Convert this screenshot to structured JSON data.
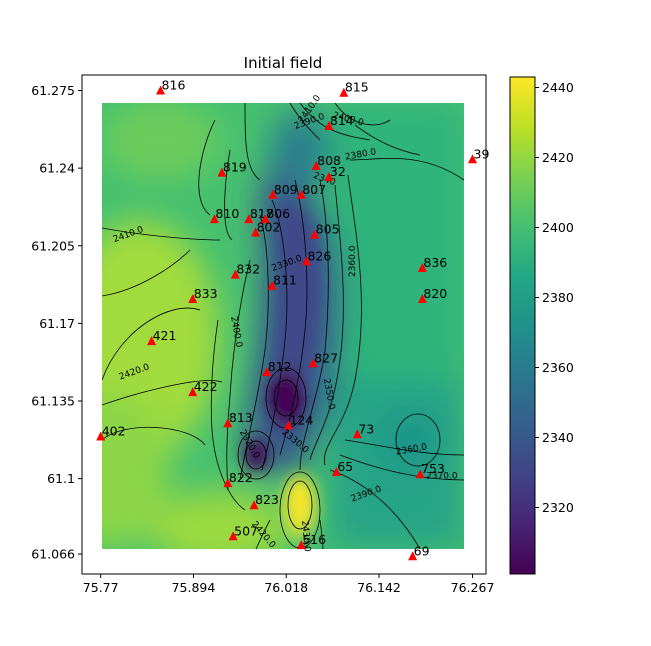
{
  "chart_data": {
    "type": "heatmap",
    "title": "Initial field",
    "xlabel": "",
    "ylabel": "",
    "xlim": [
      75.745,
      76.285
    ],
    "ylim": [
      61.057,
      61.282
    ],
    "field_extent": {
      "x": [
        75.77,
        76.267
      ],
      "y": [
        61.066,
        61.275
      ]
    },
    "x_ticks": [
      "75.77",
      "75.894",
      "76.018",
      "76.142",
      "76.267"
    ],
    "y_ticks": [
      "61.066",
      "61.1",
      "61.135",
      "61.17",
      "61.205",
      "61.24",
      "61.275"
    ],
    "colorbar": {
      "colormap": "viridis",
      "range": [
        2301,
        2443
      ],
      "ticks": [
        "2320",
        "2340",
        "2360",
        "2380",
        "2400",
        "2420",
        "2440"
      ]
    },
    "wells": [
      {
        "label": "816",
        "x": 75.85,
        "y": 61.275
      },
      {
        "label": "815",
        "x": 76.095,
        "y": 61.274
      },
      {
        "label": "814",
        "x": 76.075,
        "y": 61.259
      },
      {
        "label": "39",
        "x": 76.267,
        "y": 61.244
      },
      {
        "label": "819",
        "x": 75.932,
        "y": 61.238
      },
      {
        "label": "808",
        "x": 76.058,
        "y": 61.241
      },
      {
        "label": "32",
        "x": 76.075,
        "y": 61.236
      },
      {
        "label": "809",
        "x": 76.0,
        "y": 61.228
      },
      {
        "label": "807",
        "x": 76.038,
        "y": 61.228
      },
      {
        "label": "810",
        "x": 75.922,
        "y": 61.217
      },
      {
        "label": "817",
        "x": 75.968,
        "y": 61.217
      },
      {
        "label": "806",
        "x": 75.99,
        "y": 61.217
      },
      {
        "label": "802",
        "x": 75.977,
        "y": 61.211
      },
      {
        "label": "805",
        "x": 76.056,
        "y": 61.21
      },
      {
        "label": "826",
        "x": 76.045,
        "y": 61.198
      },
      {
        "label": "836",
        "x": 76.2,
        "y": 61.195
      },
      {
        "label": "832",
        "x": 75.95,
        "y": 61.192
      },
      {
        "label": "811",
        "x": 75.999,
        "y": 61.187
      },
      {
        "label": "820",
        "x": 76.2,
        "y": 61.181
      },
      {
        "label": "833",
        "x": 75.893,
        "y": 61.181
      },
      {
        "label": "421",
        "x": 75.838,
        "y": 61.162
      },
      {
        "label": "827",
        "x": 76.054,
        "y": 61.152
      },
      {
        "label": "812",
        "x": 75.992,
        "y": 61.148
      },
      {
        "label": "422",
        "x": 75.893,
        "y": 61.139
      },
      {
        "label": "813",
        "x": 75.94,
        "y": 61.125
      },
      {
        "label": "124",
        "x": 76.021,
        "y": 61.124
      },
      {
        "label": "73",
        "x": 76.113,
        "y": 61.12
      },
      {
        "label": "402",
        "x": 75.77,
        "y": 61.119
      },
      {
        "label": "65",
        "x": 76.085,
        "y": 61.103
      },
      {
        "label": "753",
        "x": 76.197,
        "y": 61.102
      },
      {
        "label": "822",
        "x": 75.94,
        "y": 61.098
      },
      {
        "label": "823",
        "x": 75.975,
        "y": 61.088
      },
      {
        "label": "507",
        "x": 75.947,
        "y": 61.074
      },
      {
        "label": "516",
        "x": 76.038,
        "y": 61.07
      },
      {
        "label": "69",
        "x": 76.187,
        "y": 61.065
      }
    ],
    "contour_labels": [
      {
        "text": "2410.0",
        "x": 76.052,
        "y": 61.266,
        "rot": 55
      },
      {
        "text": "2390.0",
        "x": 76.05,
        "y": 61.26,
        "rot": 20
      },
      {
        "text": "2400.0",
        "x": 76.1,
        "y": 61.261,
        "rot": -15
      },
      {
        "text": "2380.0",
        "x": 76.118,
        "y": 61.245,
        "rot": 10
      },
      {
        "text": "2340",
        "x": 76.068,
        "y": 61.234,
        "rot": -20
      },
      {
        "text": "2410.0",
        "x": 75.808,
        "y": 61.209,
        "rot": 20
      },
      {
        "text": "2330.0",
        "x": 76.02,
        "y": 61.196,
        "rot": 20
      },
      {
        "text": "2360.0",
        "x": 76.11,
        "y": 61.198,
        "rot": 90
      },
      {
        "text": "2400.0",
        "x": 75.948,
        "y": 61.166,
        "rot": -80
      },
      {
        "text": "2420.0",
        "x": 75.816,
        "y": 61.147,
        "rot": 20
      },
      {
        "text": "2350.0",
        "x": 76.072,
        "y": 61.138,
        "rot": -80
      },
      {
        "text": "2330.0",
        "x": 76.028,
        "y": 61.116,
        "rot": -40
      },
      {
        "text": "2320.0",
        "x": 75.966,
        "y": 61.115,
        "rot": -60
      },
      {
        "text": "2360.0",
        "x": 76.186,
        "y": 61.112,
        "rot": 10
      },
      {
        "text": "2370.0",
        "x": 76.226,
        "y": 61.1,
        "rot": 0
      },
      {
        "text": "2390.0",
        "x": 76.126,
        "y": 61.092,
        "rot": 20
      },
      {
        "text": "2420.0",
        "x": 75.985,
        "y": 61.074,
        "rot": -50
      },
      {
        "text": "2430.0",
        "x": 76.041,
        "y": 61.074,
        "rot": -85
      }
    ]
  }
}
